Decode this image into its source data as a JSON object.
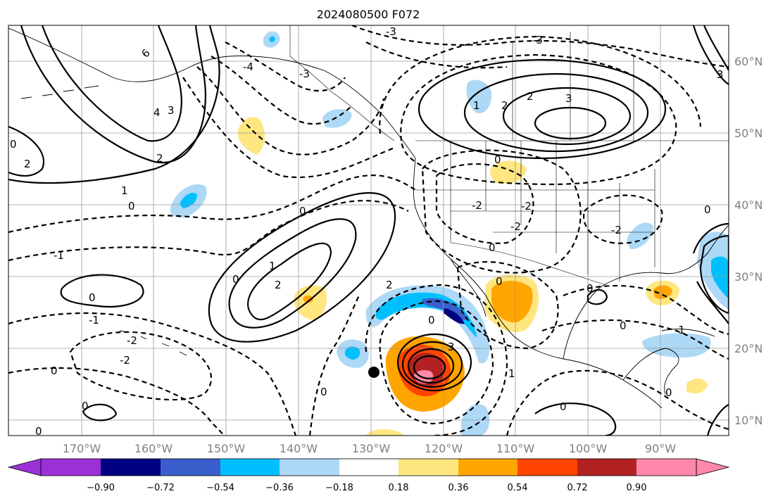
{
  "title": "2024080500 F072",
  "longitude_labels": [
    "170°W",
    "160°W",
    "150°W",
    "140°W",
    "130°W",
    "120°W",
    "110°W",
    "100°W",
    "90°W"
  ],
  "latitude_labels": [
    "60°N",
    "50°N",
    "40°N",
    "30°N",
    "20°N",
    "10°N"
  ],
  "colorbar": {
    "tick_labels": [
      "−0.90",
      "−0.72",
      "−0.54",
      "−0.36",
      "−0.18",
      "0.18",
      "0.36",
      "0.54",
      "0.72",
      "0.90"
    ],
    "colors": [
      "#9b30d9",
      "#000080",
      "#3a5fcd",
      "#00bfff",
      "#add8f6",
      "#ffffff",
      "#ffe680",
      "#ffa500",
      "#ff4500",
      "#b22222",
      "#ff88aa"
    ]
  },
  "contour_labels": [
    "-3",
    "6",
    "4",
    "3",
    "2",
    "1",
    "0",
    "-1",
    "-2",
    "-3",
    "-4"
  ],
  "marker": "black-dot"
}
